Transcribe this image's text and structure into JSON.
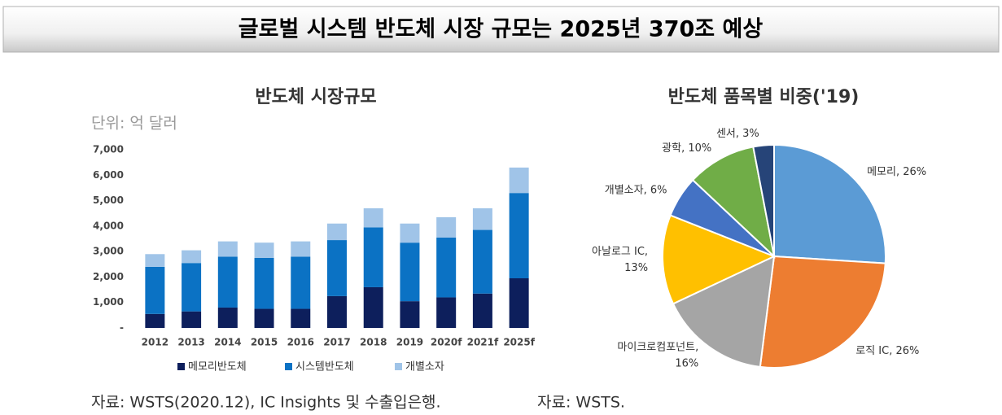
{
  "title": "글로벌 시스템 반도체 시장 규모는 2025년 370조 예상",
  "chart_data": [
    {
      "type": "bar",
      "stacked": true,
      "title": "반도체 시장규모",
      "subtitle": "단위: 억 달러",
      "categories": [
        "2012",
        "2013",
        "2014",
        "2015",
        "2016",
        "2017",
        "2018",
        "2019",
        "2020f",
        "2021f",
        "2025f"
      ],
      "series": [
        {
          "name": "메모리반도체",
          "color": "#0d1f5c",
          "values": [
            550,
            650,
            800,
            750,
            750,
            1250,
            1600,
            1050,
            1200,
            1350,
            1950
          ]
        },
        {
          "name": "시스템반도체",
          "color": "#0b72c4",
          "values": [
            1850,
            1900,
            2000,
            2000,
            2050,
            2200,
            2350,
            2300,
            2350,
            2500,
            3350
          ]
        },
        {
          "name": "개별소자",
          "color": "#a0c4e8",
          "values": [
            500,
            500,
            600,
            600,
            600,
            650,
            750,
            750,
            800,
            850,
            1000
          ]
        }
      ],
      "ylim": [
        0,
        7000
      ],
      "yticks": [
        {
          "value": 0,
          "label": "-"
        },
        {
          "value": 1000,
          "label": "1,000"
        },
        {
          "value": 2000,
          "label": "2,000"
        },
        {
          "value": 3000,
          "label": "3,000"
        },
        {
          "value": 4000,
          "label": "4,000"
        },
        {
          "value": 5000,
          "label": "5,000"
        },
        {
          "value": 6000,
          "label": "6,000"
        },
        {
          "value": 7000,
          "label": "7,000"
        }
      ],
      "grid": false,
      "legend": "bottom"
    },
    {
      "type": "pie",
      "title": "반도체 품목별 비중('19)",
      "values": [
        26,
        26,
        16,
        13,
        6,
        10,
        3
      ],
      "value_labels": [
        [
          "메모리, 26%"
        ],
        [
          "로직 IC, 26%"
        ],
        [
          "마이크로컴포넌트,",
          "16%"
        ],
        [
          "아날로그 IC,",
          "13%"
        ],
        [
          "개별소자, 6%"
        ],
        [
          "광학, 10%"
        ],
        [
          "센서, 3%"
        ]
      ],
      "colors": [
        "#5b9bd5",
        "#ed7d31",
        "#a5a5a5",
        "#ffc000",
        "#4472c4",
        "#70ad47",
        "#264478"
      ]
    }
  ],
  "sources": [
    "자료: WSTS(2020.12), IC Insights 및 수출입은행.",
    "자료: WSTS."
  ]
}
